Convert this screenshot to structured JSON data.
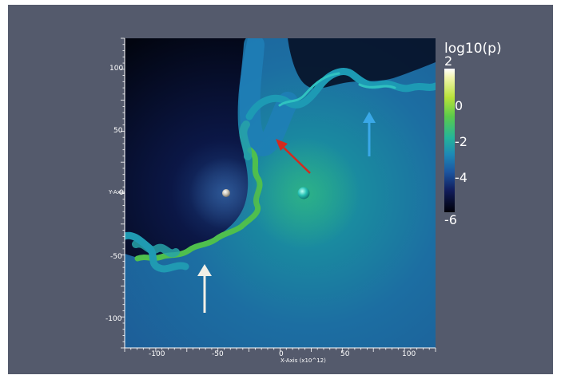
{
  "colors": {
    "viewport_bg": "#545a6c",
    "arrow_white": "#f2efe6",
    "arrow_red": "#d42a1e",
    "arrow_blue": "#3aa8e8"
  },
  "axes": {
    "x_title": "X-Axis (x10^12)",
    "y_title": "Y-Axis",
    "x_ticks": [
      "-100",
      "-50",
      "0",
      "50",
      "100"
    ],
    "y_ticks": [
      "100",
      "50",
      "0",
      "-50",
      "-100"
    ]
  },
  "colorbar": {
    "title": "log10(p)",
    "ticks": [
      "2",
      "0",
      "-2",
      "-4",
      "-6"
    ]
  },
  "icons": [
    "white-arrow-icon",
    "red-arrow-icon",
    "blue-arrow-icon",
    "grey-sphere-icon",
    "teal-sphere-icon"
  ]
}
